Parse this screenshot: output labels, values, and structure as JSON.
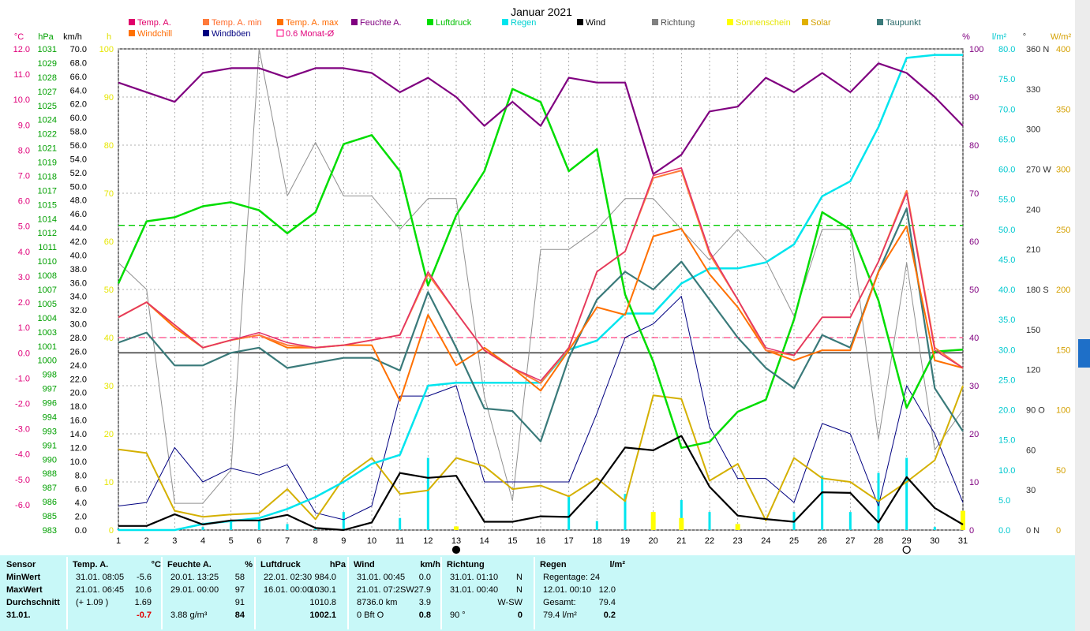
{
  "chart_data": {
    "type": "line",
    "title": "Januar 2021",
    "x": [
      1,
      2,
      3,
      4,
      5,
      6,
      7,
      8,
      9,
      10,
      11,
      12,
      13,
      14,
      15,
      16,
      17,
      18,
      19,
      20,
      21,
      22,
      23,
      24,
      25,
      26,
      27,
      28,
      29,
      30,
      31
    ],
    "x_ticks": [
      "1",
      "2",
      "3",
      "4",
      "5",
      "6",
      "7",
      "8",
      "9",
      "10",
      "11",
      "12",
      "13",
      "14",
      "15",
      "16",
      "17",
      "18",
      "19",
      "20",
      "21",
      "22",
      "23",
      "24",
      "25",
      "26",
      "27",
      "28",
      "29",
      "30",
      "31"
    ],
    "grid": true,
    "legend_position": "top",
    "axes": {
      "temp": {
        "label": "°C",
        "range": [
          -7,
          12
        ],
        "ticks": [
          "12.0",
          "11.0",
          "10.0",
          "9.0",
          "8.0",
          "7.0",
          "6.0",
          "5.0",
          "4.0",
          "3.0",
          "2.0",
          "1.0",
          "0.0",
          "-1.0",
          "-2.0",
          "-3.0",
          "-4.0",
          "-5.0",
          "-6.0"
        ],
        "color": "#e0007a"
      },
      "pressure": {
        "label": "hPa",
        "ticks": [
          "1031",
          "1029",
          "1028",
          "1027",
          "1025",
          "1024",
          "1022",
          "1021",
          "1019",
          "1018",
          "1017",
          "1015",
          "1014",
          "1012",
          "1011",
          "1010",
          "1008",
          "1007",
          "1005",
          "1004",
          "1003",
          "1001",
          "1000",
          "998",
          "997",
          "996",
          "994",
          "993",
          "991",
          "990",
          "988",
          "987",
          "986",
          "985",
          "983"
        ],
        "color": "#00a000"
      },
      "wind": {
        "label": "km/h",
        "range": [
          0,
          70
        ],
        "ticks": [
          "70.0",
          "68.0",
          "66.0",
          "64.0",
          "62.0",
          "60.0",
          "58.0",
          "56.0",
          "54.0",
          "52.0",
          "50.0",
          "48.0",
          "46.0",
          "44.0",
          "42.0",
          "40.0",
          "38.0",
          "36.0",
          "34.0",
          "32.0",
          "30.0",
          "28.0",
          "26.0",
          "24.0",
          "22.0",
          "20.0",
          "18.0",
          "16.0",
          "14.0",
          "12.0",
          "10.0",
          "8.0",
          "6.0",
          "4.0",
          "2.0",
          "0.0"
        ],
        "color": "#000000"
      },
      "sun_h": {
        "label": "h",
        "ticks": [
          "100",
          "90",
          "80",
          "70",
          "60",
          "50",
          "40",
          "30",
          "20",
          "10",
          "0"
        ],
        "color": "#e6e600"
      },
      "humidity": {
        "label": "%",
        "range": [
          0,
          100
        ],
        "ticks": [
          "100",
          "90",
          "80",
          "70",
          "60",
          "50",
          "40",
          "30",
          "20",
          "10",
          "0"
        ],
        "color": "#800080"
      },
      "rain": {
        "label": "l/m²",
        "range": [
          0,
          80
        ],
        "ticks": [
          "80.0",
          "75.0",
          "70.0",
          "65.0",
          "60.0",
          "55.0",
          "50.0",
          "45.0",
          "40.0",
          "35.0",
          "30.0",
          "25.0",
          "20.0",
          "15.0",
          "10.0",
          "5.0",
          "0.0"
        ],
        "color": "#00d0d0"
      },
      "direction": {
        "label": "°",
        "range": [
          0,
          360
        ],
        "ticks": [
          "360 N",
          "330",
          "300",
          "270 W",
          "240",
          "210",
          "180 S",
          "150",
          "120",
          "90 O",
          "60",
          "30",
          "0 N"
        ],
        "color": "#404040"
      },
      "solar": {
        "label": "W/m²",
        "range": [
          0,
          400
        ],
        "ticks": [
          "400",
          "350",
          "300",
          "250",
          "200",
          "150",
          "100",
          "50",
          "0"
        ],
        "color": "#d4a000"
      }
    },
    "legend": [
      {
        "name": "Temp. A.",
        "color": "#e0006a"
      },
      {
        "name": "Temp. A. min",
        "color": "#ff7a3a"
      },
      {
        "name": "Temp. A. max",
        "color": "#ff7000"
      },
      {
        "name": "Feuchte A.",
        "color": "#800080"
      },
      {
        "name": "Luftdruck",
        "color": "#00dd00"
      },
      {
        "name": "Regen",
        "color": "#00e5ee"
      },
      {
        "name": "Wind",
        "color": "#000000"
      },
      {
        "name": "Richtung",
        "color": "#808080"
      },
      {
        "name": "Sonnenschein",
        "color": "#ffff00"
      },
      {
        "name": "Solar",
        "color": "#e0b000"
      },
      {
        "name": "Taupunkt",
        "color": "#3a7a7a"
      },
      {
        "name": "Windchill",
        "color": "#ff7000"
      },
      {
        "name": "Windböen",
        "color": "#000080"
      },
      {
        "name": "0.6 Monat-Ø",
        "color": "#ff0080"
      }
    ],
    "series": [
      {
        "name": "Temp. A.",
        "axis": "temp",
        "color": "#e0306a",
        "values": [
          1.4,
          2.0,
          1.1,
          0.2,
          0.5,
          0.8,
          0.4,
          0.2,
          0.3,
          0.5,
          0.7,
          3.2,
          1.6,
          0.1,
          -0.6,
          -1.1,
          0.2,
          3.2,
          4.0,
          7.0,
          7.3,
          4.0,
          2.1,
          0.2,
          -0.1,
          1.4,
          1.4,
          3.6,
          6.3,
          0.1,
          -0.6
        ]
      },
      {
        "name": "Temp. A. min",
        "axis": "temp",
        "color": "#ff7a3a",
        "values": [
          1.4,
          2.0,
          1.1,
          0.2,
          0.5,
          0.7,
          0.3,
          0.2,
          0.3,
          0.5,
          0.7,
          3.1,
          1.6,
          0.1,
          -0.6,
          -1.2,
          0.2,
          3.2,
          4.0,
          6.9,
          7.2,
          3.9,
          2.1,
          0.1,
          -0.1,
          1.4,
          1.4,
          3.6,
          6.4,
          0.2,
          -0.6
        ]
      },
      {
        "name": "Temp. A. max",
        "axis": "temp",
        "color": "#ff7000",
        "values": [
          1.4,
          2.0,
          1.0,
          0.2,
          0.5,
          0.7,
          0.2,
          0.2,
          0.3,
          0.3,
          -1.9,
          1.5,
          -0.5,
          0.2,
          -0.6,
          -1.5,
          0.1,
          1.8,
          1.5,
          4.6,
          4.9,
          3.1,
          1.8,
          0.1,
          -0.3,
          0.1,
          0.1,
          3.2,
          5.0,
          -0.3,
          -0.6
        ]
      },
      {
        "name": "Taupunkt",
        "axis": "temp",
        "color": "#3a7a7a",
        "values": [
          0.4,
          0.8,
          -0.5,
          -0.5,
          0.0,
          0.2,
          -0.6,
          -0.4,
          -0.2,
          -0.2,
          -0.7,
          2.4,
          0.2,
          -2.2,
          -2.3,
          -3.5,
          -0.2,
          2.1,
          3.2,
          2.5,
          3.6,
          2.1,
          0.6,
          -0.6,
          -1.4,
          0.7,
          0.2,
          3.2,
          5.7,
          -1.4,
          -3.1
        ]
      },
      {
        "name": "Feuchte A.",
        "axis": "humidity",
        "color": "#800080",
        "values": [
          93,
          91,
          89,
          95,
          96,
          96,
          94,
          96,
          96,
          95,
          91,
          94,
          90,
          84,
          89,
          84,
          94,
          93,
          93,
          74,
          78,
          87,
          88,
          94,
          91,
          95,
          91,
          97,
          95,
          90,
          84
        ]
      },
      {
        "name": "Luftdruck",
        "axis": "pressure",
        "color": "#00dd00",
        "values": [
          1007.6,
          1013.8,
          1014.2,
          1015.3,
          1015.7,
          1014.9,
          1012.6,
          1014.7,
          1021.5,
          1022.4,
          1018.8,
          1007.4,
          1014.4,
          1018.8,
          1027.0,
          1025.7,
          1018.8,
          1021.0,
          1006.5,
          999.8,
          991.2,
          991.8,
          994.8,
          996.0,
          1004.0,
          1014.7,
          1013.0,
          1005.9,
          995.2,
          1000.8,
          1001.0
        ]
      },
      {
        "name": "Regen",
        "axis": "rain",
        "color": "#00e5ee",
        "values": [
          0.0,
          0.0,
          0.0,
          1.0,
          1.5,
          2.0,
          3.5,
          5.5,
          8.0,
          11.0,
          12.5,
          24.0,
          24.5,
          24.5,
          24.5,
          24.5,
          30.0,
          31.5,
          36.0,
          36.0,
          41.0,
          43.5,
          43.5,
          44.5,
          47.5,
          55.5,
          58.0,
          67.0,
          78.5,
          79.0,
          79.0
        ]
      },
      {
        "name": "Wind",
        "axis": "wind",
        "color": "#000000",
        "values": [
          0.6,
          0.6,
          2.3,
          0.8,
          1.4,
          1.4,
          2.2,
          0.3,
          0.0,
          1.1,
          8.3,
          7.6,
          7.9,
          1.2,
          1.2,
          2.0,
          1.9,
          6.3,
          12.0,
          11.6,
          13.7,
          6.3,
          2.1,
          1.6,
          1.2,
          5.5,
          5.4,
          1.1,
          7.7,
          3.2,
          0.8
        ]
      },
      {
        "name": "Windböen",
        "axis": "wind",
        "color": "#000080",
        "values": [
          3.5,
          4.0,
          12.0,
          7.0,
          9.0,
          8.0,
          9.5,
          2.5,
          1.5,
          3.5,
          19.5,
          19.5,
          21.0,
          7.0,
          7.0,
          7.0,
          7.0,
          17.0,
          28.0,
          30.0,
          34.0,
          15.0,
          7.5,
          7.5,
          4.0,
          15.5,
          14.0,
          3.5,
          21.0,
          14.0,
          4.0
        ]
      },
      {
        "name": "Richtung",
        "axis": "direction",
        "color": "#909090",
        "values": [
          200,
          180,
          20,
          20,
          45,
          360,
          250,
          290,
          250,
          250,
          225,
          248,
          248,
          100,
          22,
          210,
          210,
          225,
          248,
          248,
          225,
          202,
          225,
          202,
          160,
          225,
          225,
          68,
          200,
          60,
          90
        ]
      },
      {
        "name": "Solar",
        "axis": "solar",
        "color": "#d4b000",
        "values": [
          67,
          64,
          16,
          11,
          13,
          14,
          34,
          9,
          43,
          60,
          30,
          33,
          60,
          53,
          34,
          37,
          28,
          43,
          24,
          112,
          109,
          41,
          55,
          8,
          60,
          43,
          40,
          24,
          40,
          58,
          120
        ]
      }
    ],
    "reference_lines": [
      {
        "name": "0.6 Monat-Ø",
        "axis": "temp",
        "value": 0.6,
        "color": "#ff4080",
        "dashed": true
      },
      {
        "name": "Luftdruck Ø",
        "axis": "pressure",
        "value": 1013.4,
        "color": "#00cc00",
        "dashed": true
      },
      {
        "name": "zero",
        "axis": "temp",
        "value": 0.0,
        "color": "#404040",
        "dashed": false
      }
    ],
    "rain_bars": {
      "axis": "rain",
      "color": "#00e5ee",
      "values": [
        0.2,
        0.0,
        0.0,
        0.5,
        1.5,
        1.5,
        1.0,
        0.2,
        3.0,
        0.0,
        2.0,
        12.0,
        0.2,
        0.0,
        0.0,
        0.0,
        5.5,
        1.5,
        6.0,
        0.0,
        5.0,
        3.0,
        0.0,
        0.0,
        3.0,
        9.0,
        3.0,
        9.5,
        12.0,
        0.5,
        0.0
      ]
    },
    "sun_bars": {
      "axis": "solar",
      "color": "#ffff00",
      "values": [
        0,
        0,
        0,
        0,
        0,
        0,
        0,
        0,
        0,
        0,
        0,
        0,
        3,
        0,
        0,
        0,
        0,
        0,
        0,
        15,
        10,
        0,
        5,
        0,
        0,
        0,
        0,
        0,
        0,
        0,
        16
      ]
    },
    "moon_markers": [
      {
        "day": 13,
        "phase": "new"
      },
      {
        "day": 29,
        "phase": "full"
      }
    ]
  },
  "stats": {
    "sensor_header": "Sensor",
    "row_labels": [
      "MinWert",
      "MaxWert",
      "Durchschnitt",
      "31.01."
    ],
    "temp": {
      "header": "Temp. A.",
      "unit": "°C",
      "rows": [
        [
          "31.01.  08:05",
          "-5.6"
        ],
        [
          "21.01.  06:45",
          "10.6"
        ],
        [
          "(+ 1.09 )",
          "1.69"
        ],
        [
          "",
          "-0.7"
        ]
      ]
    },
    "feuchte": {
      "header": "Feuchte A.",
      "unit": "%",
      "rows": [
        [
          "20.01.  13:25",
          "58"
        ],
        [
          "29.01.  00:00",
          "97"
        ],
        [
          "",
          "91"
        ],
        [
          "3.88 g/m³",
          "84"
        ]
      ]
    },
    "luftdruck": {
      "header": "Luftdruck",
      "unit": "hPa",
      "rows": [
        [
          "22.01.  02:30",
          "984.0"
        ],
        [
          "16.01.  00:00",
          "1030.1"
        ],
        [
          "",
          "1010.8"
        ],
        [
          "",
          "1002.1"
        ]
      ]
    },
    "wind": {
      "header": "Wind",
      "unit": "km/h",
      "rows": [
        [
          "31.01.  00:45",
          "0.0"
        ],
        [
          "21.01.  07:2SW",
          "27.9"
        ],
        [
          "8736.0 km",
          "3.9"
        ],
        [
          "0 Bft O",
          "0.8"
        ]
      ]
    },
    "richtung": {
      "header": "Richtung",
      "rows": [
        [
          "31.01.  01:10",
          "N"
        ],
        [
          "31.01.  00:40",
          "N"
        ],
        [
          "",
          "W-SW"
        ],
        [
          "90 °",
          "0"
        ]
      ]
    },
    "regen": {
      "header": "Regen",
      "unit": "l/m²",
      "rows": [
        [
          "Regentage: 24",
          ""
        ],
        [
          "12.01.  00:10",
          "12.0"
        ],
        [
          "Gesamt:",
          "79.4"
        ],
        [
          "79.4 l/m²",
          "0.2"
        ]
      ]
    }
  }
}
